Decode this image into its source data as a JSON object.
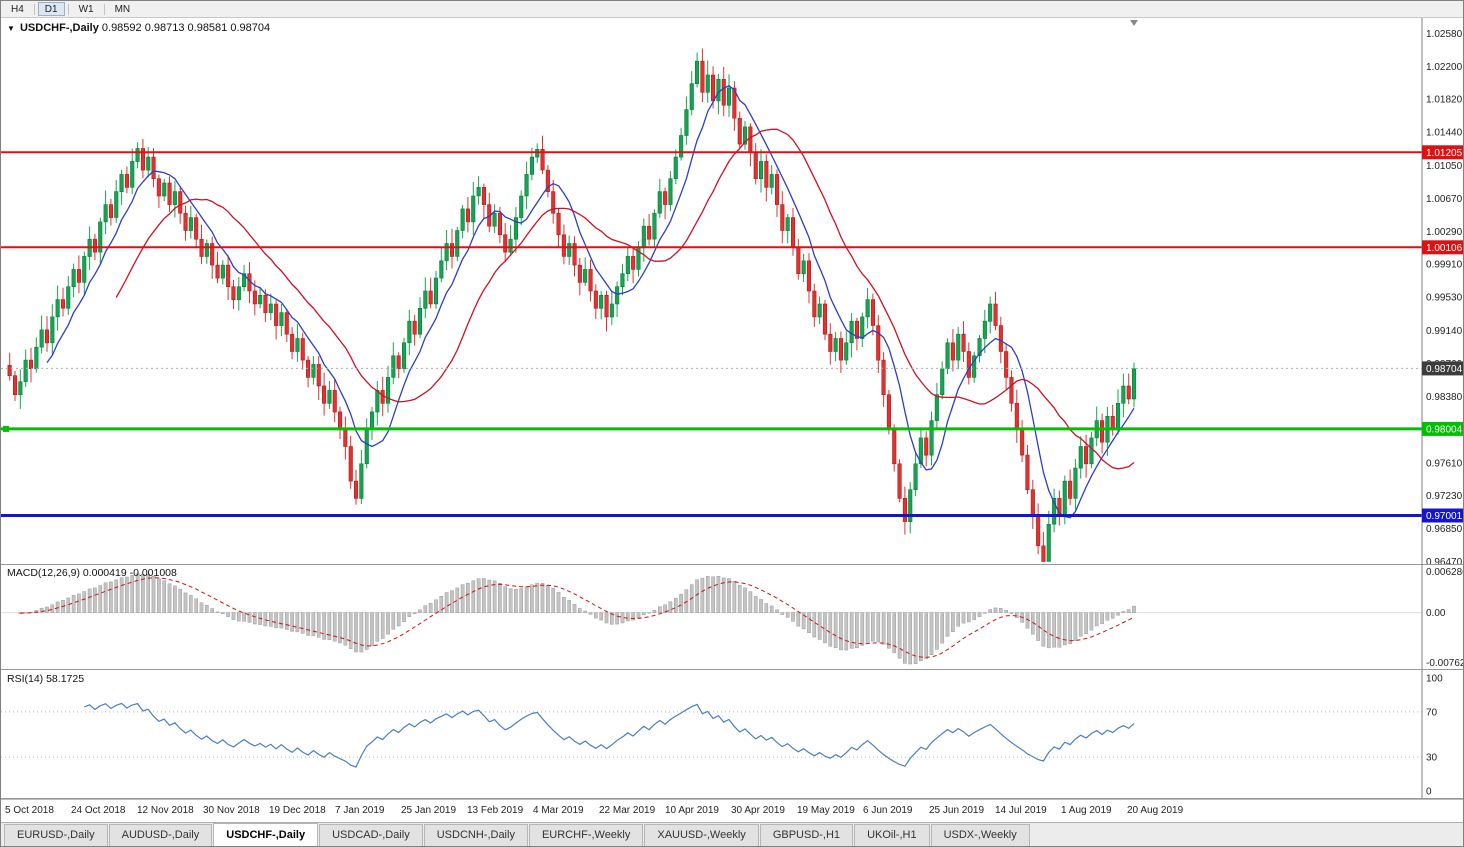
{
  "toolbar": {
    "timeframes": [
      {
        "label": "H4",
        "active": false
      },
      {
        "label": "D1",
        "active": true
      },
      {
        "label": "W1",
        "active": false
      },
      {
        "label": "MN",
        "active": false
      }
    ]
  },
  "header": {
    "symbol": "USDCHF-,Daily",
    "ohlc": "0.98592 0.98713 0.98581 0.98704"
  },
  "chart_data": {
    "type": "candlestick",
    "y_min": 0.9644,
    "y_max": 1.0276,
    "axis_labels": [
      "1.02580",
      "1.02200",
      "1.01820",
      "1.01440",
      "1.01050",
      "1.00670",
      "1.00290",
      "0.99910",
      "0.99530",
      "0.99140",
      "0.98760",
      "0.98380",
      "0.97610",
      "0.97230",
      "0.96850",
      "0.96470"
    ],
    "closes": [
      0.9862,
      0.984,
      0.9855,
      0.988,
      0.987,
      0.9895,
      0.9915,
      0.99,
      0.993,
      0.995,
      0.994,
      0.9965,
      0.9985,
      0.997,
      1.0,
      1.002,
      1.0005,
      1.004,
      1.006,
      1.0045,
      1.0075,
      1.0095,
      1.008,
      1.011,
      1.0125,
      1.01,
      1.0115,
      1.009,
      1.007,
      1.0085,
      1.006,
      1.0075,
      1.005,
      1.003,
      1.0045,
      1.002,
      1.0,
      1.0015,
      0.999,
      0.9975,
      0.999,
      0.9965,
      0.995,
      0.9965,
      0.998,
      0.996,
      0.9945,
      0.9955,
      0.9935,
      0.9945,
      0.992,
      0.9935,
      0.991,
      0.989,
      0.9905,
      0.988,
      0.986,
      0.9875,
      0.985,
      0.983,
      0.9845,
      0.982,
      0.98,
      0.978,
      0.974,
      0.972,
      0.976,
      0.98,
      0.982,
      0.9845,
      0.983,
      0.986,
      0.9885,
      0.987,
      0.99,
      0.9925,
      0.991,
      0.994,
      0.996,
      0.9945,
      0.9975,
      0.9995,
      1.0015,
      1.0,
      1.003,
      1.0055,
      1.004,
      1.007,
      1.008,
      1.006,
      1.0035,
      1.005,
      1.0025,
      1.0005,
      1.002,
      1.0045,
      1.007,
      1.0095,
      1.0115,
      1.0124,
      1.01,
      1.0075,
      1.005,
      1.0025,
      1.0,
      1.0015,
      0.999,
      0.997,
      0.9985,
      0.996,
      0.994,
      0.9955,
      0.993,
      0.9945,
      0.9965,
      0.998,
      1.0,
      0.9985,
      1.001,
      1.0035,
      1.002,
      1.005,
      1.0075,
      1.006,
      1.009,
      1.0115,
      1.014,
      1.017,
      1.02,
      1.0226,
      1.019,
      1.021,
      1.018,
      1.0205,
      1.0175,
      1.0195,
      1.016,
      1.013,
      1.015,
      1.012,
      1.009,
      1.011,
      1.008,
      1.0095,
      1.006,
      1.003,
      1.0045,
      1.001,
      0.998,
      0.9995,
      0.996,
      0.993,
      0.9945,
      0.991,
      0.989,
      0.9905,
      0.988,
      0.99,
      0.9925,
      0.9905,
      0.993,
      0.995,
      0.992,
      0.988,
      0.984,
      0.98,
      0.976,
      0.972,
      0.9693,
      0.973,
      0.976,
      0.979,
      0.977,
      0.981,
      0.984,
      0.987,
      0.99,
      0.988,
      0.991,
      0.989,
      0.986,
      0.9885,
      0.9905,
      0.9925,
      0.9945,
      0.992,
      0.989,
      0.986,
      0.983,
      0.98,
      0.977,
      0.973,
      0.97,
      0.9665,
      0.9647,
      0.969,
      0.972,
      0.97,
      0.974,
      0.972,
      0.9755,
      0.978,
      0.976,
      0.979,
      0.981,
      0.9785,
      0.9815,
      0.98,
      0.983,
      0.985,
      0.9835,
      0.987
    ],
    "hlines": [
      {
        "price": 1.01205,
        "label": "1.01205",
        "color": "#dd1111",
        "width": 2
      },
      {
        "price": 1.00106,
        "label": "1.00106",
        "color": "#dd1111",
        "width": 2
      },
      {
        "price": 0.98004,
        "label": "0.98004",
        "color": "#00c000",
        "width": 3
      },
      {
        "price": 0.97001,
        "label": "0.97001",
        "color": "#1515d0",
        "width": 3
      }
    ],
    "current_price": 0.98704,
    "current_price_label": "0.98704",
    "colors": {
      "up": "#14a551",
      "up_dark": "#0b7a3a",
      "down": "#e53030",
      "down_dark": "#a81f1f",
      "ma_fast": "#2b3fc4",
      "ma_slow": "#cc1122",
      "current_badge": "#3c3c3c"
    }
  },
  "macd": {
    "label": "MACD(12,26,9) 0.000419 -0.001008",
    "params": [
      12,
      26,
      9
    ],
    "value_main": "0.000419",
    "value_signal": "-0.001008",
    "axis_max_label": "0.006286",
    "axis_zero_label": "0.00",
    "axis_min_label": "-0.00762",
    "y_max": 0.0063,
    "y_min": -0.0076
  },
  "rsi": {
    "label": "RSI(14) 58.1725",
    "period": 14,
    "value": "58.1725",
    "levels": [
      70,
      30
    ],
    "axis_labels": [
      "100",
      "70",
      "30",
      "0"
    ]
  },
  "date_axis": [
    "5 Oct 2018",
    "24 Oct 2018",
    "12 Nov 2018",
    "30 Nov 2018",
    "19 Dec 2018",
    "7 Jan 2019",
    "25 Jan 2019",
    "13 Feb 2019",
    "4 Mar 2019",
    "22 Mar 2019",
    "10 Apr 2019",
    "30 Apr 2019",
    "19 May 2019",
    "6 Jun 2019",
    "25 Jun 2019",
    "14 Jul 2019",
    "1 Aug 2019",
    "20 Aug 2019"
  ],
  "tabs": [
    {
      "label": "EURUSD-,Daily",
      "active": false
    },
    {
      "label": "AUDUSD-,Daily",
      "active": false
    },
    {
      "label": "USDCHF-,Daily",
      "active": true
    },
    {
      "label": "USDCAD-,Daily",
      "active": false
    },
    {
      "label": "USDCNH-,Daily",
      "active": false
    },
    {
      "label": "EURCHF-,Weekly",
      "active": false
    },
    {
      "label": "XAUUSD-,Weekly",
      "active": false
    },
    {
      "label": "GBPUSD-,H1",
      "active": false
    },
    {
      "label": "UKOil-,H1",
      "active": false
    },
    {
      "label": "USDX-,Weekly",
      "active": false
    }
  ]
}
